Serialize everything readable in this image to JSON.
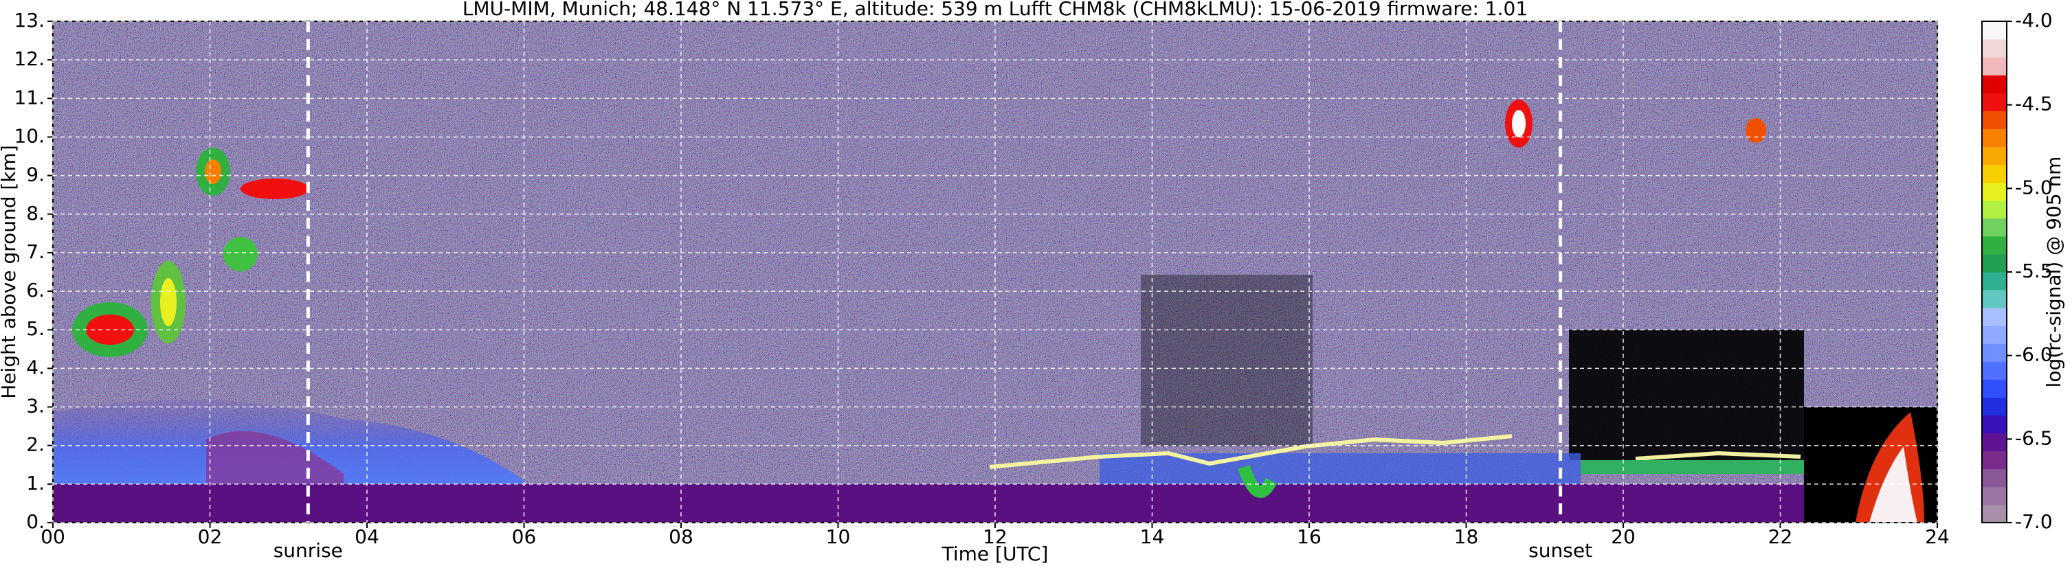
{
  "chart_data": {
    "type": "heatmap",
    "title": "LMU-MIM, Munich; 48.148° N 11.573° E, altitude: 539 m    Lufft CHM8k (CHM8kLMU): 15-06-2019    firmware: 1.01",
    "xlabel": "Time [UTC]",
    "ylabel": "Height above ground [km]",
    "xlim": [
      0,
      24
    ],
    "xticks": [
      {
        "value": 0,
        "label": "00"
      },
      {
        "value": 2,
        "label": "02"
      },
      {
        "value": 4,
        "label": "04"
      },
      {
        "value": 6,
        "label": "06"
      },
      {
        "value": 8,
        "label": "08"
      },
      10,
      12,
      14,
      16,
      18,
      20,
      22,
      24
    ],
    "ylim": [
      0,
      13
    ],
    "yticks": [
      {
        "value": 0,
        "label": "0."
      },
      {
        "value": 1,
        "label": "1."
      },
      {
        "value": 2,
        "label": "2."
      },
      {
        "value": 3,
        "label": "3."
      },
      {
        "value": 4,
        "label": "4."
      },
      {
        "value": 5,
        "label": "5."
      },
      {
        "value": 6,
        "label": "6."
      },
      {
        "value": 7,
        "label": "7."
      },
      {
        "value": 8,
        "label": "8."
      },
      {
        "value": 9,
        "label": "9."
      },
      {
        "value": 10,
        "label": "10."
      },
      {
        "value": 11,
        "label": "11."
      },
      {
        "value": 12,
        "label": "12."
      },
      {
        "value": 13,
        "label": "13."
      }
    ],
    "grid": true,
    "annotations": [
      {
        "x": 3.25,
        "label": "sunrise"
      },
      {
        "x": 19.2,
        "label": "sunset"
      }
    ],
    "colorbar": {
      "label": "log(rc-signal) @ 905 nm",
      "lim": [
        -7,
        -4
      ],
      "ticks": [
        {
          "value": -7,
          "label": "-7.0"
        },
        {
          "value": -6.5,
          "label": "-6.5"
        },
        {
          "value": -6,
          "label": "-6.0"
        },
        {
          "value": -5.5,
          "label": "-5.5"
        },
        {
          "value": -5,
          "label": "-5.0"
        },
        {
          "value": -4.5,
          "label": "-4.5"
        },
        {
          "value": -4,
          "label": "-4.0"
        }
      ],
      "colors": [
        "#a890a8",
        "#9a74a2",
        "#8a5898",
        "#7a2c8c",
        "#601494",
        "#3a10b8",
        "#2030e0",
        "#3050ff",
        "#5070ff",
        "#7090ff",
        "#90aaff",
        "#a8c0ff",
        "#60c8c0",
        "#30b090",
        "#20a050",
        "#30b040",
        "#70d060",
        "#b0f040",
        "#e8f020",
        "#f8d000",
        "#f8a800",
        "#f88000",
        "#f05000",
        "#f01010",
        "#e00000",
        "#f0b8b8",
        "#f0d8d8",
        "#f8f8f8"
      ]
    }
  }
}
